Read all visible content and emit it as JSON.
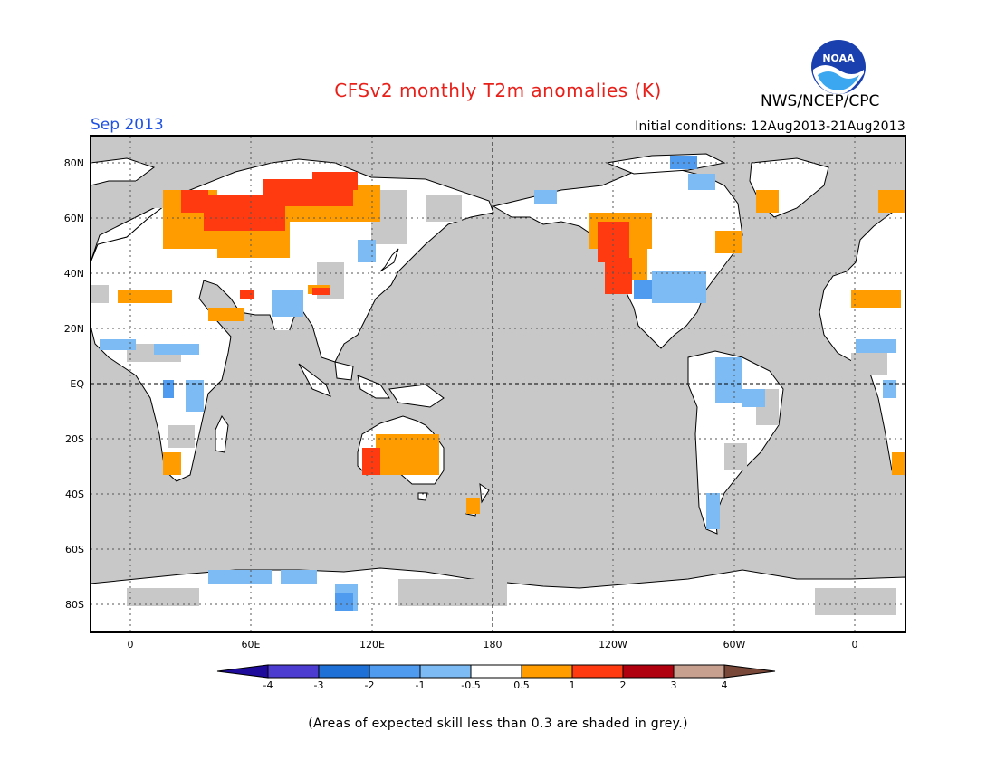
{
  "header": {
    "title": "CFSv2 monthly T2m anomalies (K)",
    "month": "Sep 2013",
    "initial_conditions": "Initial conditions: 12Aug2013-21Aug2013",
    "agency": "NWS/NCEP/CPC",
    "logo_text": "NOAA"
  },
  "map": {
    "projection": "equirectangular",
    "lon_labels": [
      "0",
      "60E",
      "120E",
      "180",
      "120W",
      "60W",
      "0"
    ],
    "lat_labels": [
      "80N",
      "60N",
      "40N",
      "20N",
      "EQ",
      "20S",
      "40S",
      "60S",
      "80S"
    ],
    "background_color": "#c8c8c8",
    "land_color": "#ffffff"
  },
  "colorbar": {
    "labels": [
      "-4",
      "-3",
      "-2",
      "-1",
      "-0.5",
      "0.5",
      "1",
      "2",
      "3",
      "4"
    ],
    "colors": [
      "#1e0b9c",
      "#4c3ccf",
      "#1e6fd6",
      "#4f9bf0",
      "#7dbbf5",
      "#ffffff",
      "#ff9d00",
      "#ff3a10",
      "#b00010",
      "#c8a090",
      "#7a4838"
    ]
  },
  "footer": {
    "note": "(Areas of expected skill less than 0.3 are shaded in grey.)"
  }
}
